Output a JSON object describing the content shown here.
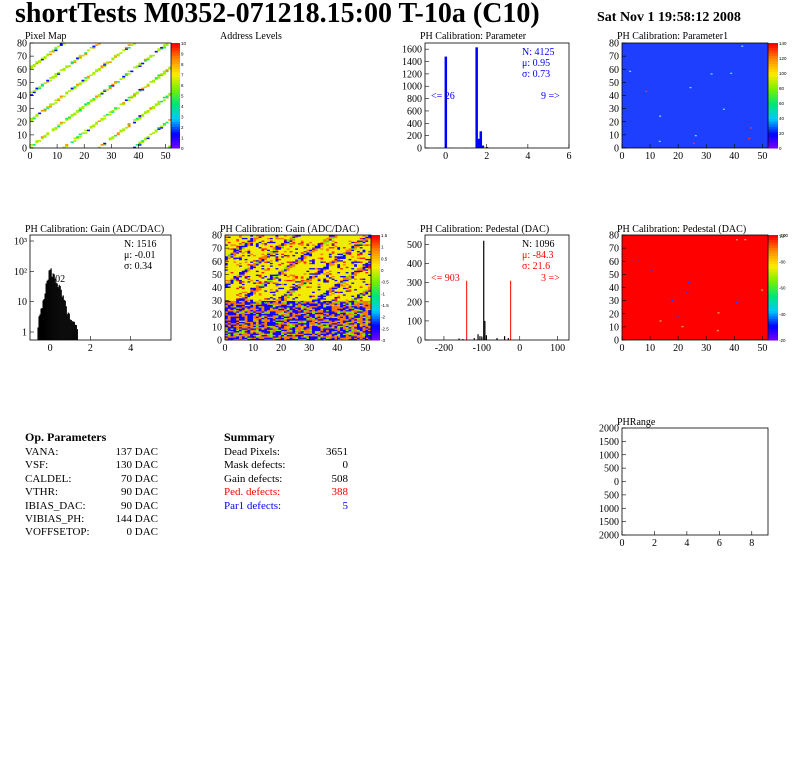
{
  "header": {
    "title": "shortTests M0352-071218.15:00 T-10a (C10)",
    "date": "Sat Nov  1 19:58:12 2008"
  },
  "colors": {
    "blue": "#0000ff",
    "red": "#ff0000",
    "yellow": "#e6f51e"
  },
  "chart_data": [
    {
      "id": "pixel-map",
      "type": "heatmap",
      "title": "Pixel Map",
      "xlim": [
        0,
        52
      ],
      "ylim": [
        0,
        80
      ],
      "xticks": [
        "0",
        "10",
        "20",
        "30",
        "40",
        "50"
      ],
      "yticks": [
        "0",
        "10",
        "20",
        "30",
        "40",
        "50",
        "60",
        "70",
        "80"
      ],
      "zlim": [
        0,
        10
      ],
      "zticks": [
        "0",
        "1",
        "2",
        "3",
        "4",
        "5",
        "6",
        "7",
        "8",
        "9",
        "10"
      ],
      "pattern": "diagonal stripes of hit pixels, values mostly 9-10 with sparse low values"
    },
    {
      "id": "address-levels",
      "type": "bar",
      "title": "Address Levels"
    },
    {
      "id": "ph-parameter",
      "type": "bar",
      "title": "PH Calibration: Parameter",
      "xlim": [
        -1,
        6
      ],
      "ylim": [
        0,
        1700
      ],
      "xticks": [
        "0",
        "2",
        "4",
        "6"
      ],
      "yticks": [
        "0",
        "200",
        "400",
        "600",
        "800",
        "1000",
        "1200",
        "1400",
        "1600"
      ],
      "stats": {
        "n": "N: 4125",
        "mu": "μ: 0.95",
        "sigma": "σ: 0.73"
      },
      "underflow": "<= 26",
      "overflow": "9 =>",
      "bins": [
        {
          "x": -0.3,
          "y": 3
        },
        {
          "x": 0.0,
          "y": 1480
        },
        {
          "x": 0.2,
          "y": 5
        },
        {
          "x": 1.0,
          "y": 4
        },
        {
          "x": 1.5,
          "y": 1630
        },
        {
          "x": 1.6,
          "y": 150
        },
        {
          "x": 1.7,
          "y": 270
        },
        {
          "x": 1.8,
          "y": 40
        },
        {
          "x": 2.0,
          "y": 15
        }
      ]
    },
    {
      "id": "ph-parameter1",
      "type": "heatmap",
      "title": "PH Calibration: Parameter1",
      "xlim": [
        0,
        52
      ],
      "ylim": [
        0,
        80
      ],
      "xticks": [
        "0",
        "10",
        "20",
        "30",
        "40",
        "50"
      ],
      "yticks": [
        "0",
        "10",
        "20",
        "30",
        "40",
        "50",
        "60",
        "70",
        "80"
      ],
      "zticks": [
        "0",
        "20",
        "40",
        "60",
        "80",
        "100",
        "120",
        "140"
      ]
    },
    {
      "id": "gain-1d",
      "type": "bar",
      "title": "PH Calibration: Gain (ADC/DAC)",
      "xlim": [
        -1,
        6
      ],
      "log_y": true,
      "xticks": [
        "0",
        "2",
        "4"
      ],
      "yticks": [
        "1",
        "10",
        "10²",
        "10³"
      ],
      "stats": {
        "n": "N: 1516",
        "mu": "μ: -0.01",
        "sigma": "σ: 0.34"
      },
      "annotation": "02",
      "envelope": [
        {
          "x": -0.6,
          "y": 2
        },
        {
          "x": -0.4,
          "y": 8
        },
        {
          "x": -0.2,
          "y": 40
        },
        {
          "x": 0.0,
          "y": 150
        },
        {
          "x": 0.2,
          "y": 90
        },
        {
          "x": 0.4,
          "y": 50
        },
        {
          "x": 0.6,
          "y": 20
        },
        {
          "x": 0.8,
          "y": 8
        },
        {
          "x": 1.0,
          "y": 3
        },
        {
          "x": 1.4,
          "y": 1.5
        }
      ]
    },
    {
      "id": "gain-2d",
      "type": "heatmap",
      "title": "PH Calibration: Gain (ADC/DAC)",
      "xlim": [
        0,
        52
      ],
      "ylim": [
        0,
        80
      ],
      "xticks": [
        "0",
        "10",
        "20",
        "30",
        "40",
        "50"
      ],
      "yticks": [
        "0",
        "10",
        "20",
        "30",
        "40",
        "50",
        "60",
        "70",
        "80"
      ],
      "zticks": [
        "1.5",
        "1",
        "0.5",
        "0",
        "-0.5",
        "-1",
        "-1.5",
        "-2",
        "-2.5",
        "-3"
      ]
    },
    {
      "id": "pedestal-1d",
      "type": "bar",
      "title": "PH Calibration: Pedestal (DAC)",
      "xlim": [
        -250,
        130
      ],
      "ylim": [
        0,
        550
      ],
      "xticks": [
        "-200",
        "-100",
        "0",
        "100"
      ],
      "yticks": [
        "0",
        "100",
        "200",
        "300",
        "400",
        "500"
      ],
      "stats": {
        "n": "N: 1096",
        "mu": "μ: -84.3",
        "sigma": "σ: 21.6"
      },
      "underflow": "<= 903",
      "overflow": "3 =>",
      "bins": [
        {
          "x": -160,
          "y": 8
        },
        {
          "x": -150,
          "y": 5
        },
        {
          "x": -120,
          "y": 10
        },
        {
          "x": -110,
          "y": 30
        },
        {
          "x": -105,
          "y": 20
        },
        {
          "x": -100,
          "y": 15
        },
        {
          "x": -95,
          "y": 520
        },
        {
          "x": -92,
          "y": 100
        },
        {
          "x": -88,
          "y": 25
        },
        {
          "x": -60,
          "y": 10
        },
        {
          "x": -40,
          "y": 20
        },
        {
          "x": -30,
          "y": 10
        }
      ],
      "threshold_lines": [
        -140,
        -24
      ]
    },
    {
      "id": "pedestal-2d",
      "type": "heatmap",
      "title": "PH Calibration: Pedestal (DAC)",
      "xlim": [
        0,
        52
      ],
      "ylim": [
        0,
        80
      ],
      "xticks": [
        "0",
        "10",
        "20",
        "30",
        "40",
        "50"
      ],
      "yticks": [
        "0",
        "10",
        "20",
        "30",
        "40",
        "50",
        "60",
        "70",
        "80"
      ],
      "zmax_label": "10³",
      "zticks": [
        "-20",
        "-40",
        "-60",
        "-80",
        "-100"
      ]
    },
    {
      "id": "ph-range",
      "type": "scatter",
      "title": "PHRange",
      "xlim": [
        0,
        9
      ],
      "ylim": [
        -2000,
        2000
      ],
      "xticks": [
        "0",
        "2",
        "4",
        "6",
        "8"
      ],
      "yticks": [
        "2000",
        "1500",
        "1000",
        "500",
        "0",
        "500",
        "1000",
        "1500",
        "2000"
      ],
      "points": []
    }
  ],
  "op_parameters": {
    "title": "Op. Parameters",
    "rows": [
      {
        "name": "VANA:",
        "value": "137 DAC"
      },
      {
        "name": "VSF:",
        "value": "130 DAC"
      },
      {
        "name": "CALDEL:",
        "value": "70 DAC"
      },
      {
        "name": "VTHR:",
        "value": "90 DAC"
      },
      {
        "name": "IBIAS_DAC:",
        "value": "90 DAC"
      },
      {
        "name": "VIBIAS_PH:",
        "value": "144 DAC"
      },
      {
        "name": "VOFFSETOP:",
        "value": "0 DAC"
      }
    ]
  },
  "summary": {
    "title": "Summary",
    "rows": [
      {
        "name": "Dead Pixels:",
        "value": "3651",
        "color": "#000000"
      },
      {
        "name": "Mask defects:",
        "value": "0",
        "color": "#000000"
      },
      {
        "name": "Gain defects:",
        "value": "508",
        "color": "#000000"
      },
      {
        "name": "Ped. defects:",
        "value": "388",
        "color": "#ff0000"
      },
      {
        "name": "Par1 defects:",
        "value": "5",
        "color": "#0000ff"
      }
    ]
  }
}
